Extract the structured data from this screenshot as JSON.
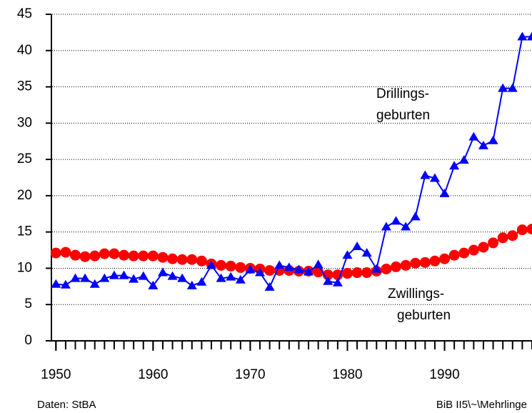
{
  "chart_data": {
    "type": "line",
    "x": [
      1950,
      1951,
      1952,
      1953,
      1954,
      1955,
      1956,
      1957,
      1958,
      1959,
      1960,
      1961,
      1962,
      1963,
      1964,
      1965,
      1966,
      1967,
      1968,
      1969,
      1970,
      1971,
      1972,
      1973,
      1974,
      1975,
      1976,
      1977,
      1978,
      1979,
      1980,
      1981,
      1982,
      1983,
      1984,
      1985,
      1986,
      1987,
      1988,
      1989,
      1990,
      1991,
      1992,
      1993,
      1994,
      1995,
      1996,
      1997,
      1998,
      1999
    ],
    "series": [
      {
        "color": "#ff0000",
        "marker": "circle",
        "values": [
          12.1,
          12.2,
          11.8,
          11.6,
          11.7,
          12.0,
          12.0,
          11.8,
          11.7,
          11.7,
          11.7,
          11.5,
          11.3,
          11.2,
          11.2,
          11.0,
          10.6,
          10.4,
          10.3,
          10.1,
          10.0,
          9.9,
          9.7,
          9.7,
          9.7,
          9.6,
          9.6,
          9.5,
          9.1,
          9.1,
          9.3,
          9.4,
          9.4,
          9.6,
          9.9,
          10.2,
          10.4,
          10.7,
          10.8,
          11.0,
          11.3,
          11.8,
          12.1,
          12.5,
          12.9,
          13.5,
          14.2,
          14.5,
          15.3,
          15.4
        ]
      },
      {
        "color": "#0000ff",
        "marker": "triangle",
        "values": [
          7.8,
          7.7,
          8.6,
          8.6,
          7.8,
          8.6,
          9.0,
          9.0,
          8.5,
          8.9,
          7.6,
          9.4,
          8.9,
          8.6,
          7.6,
          8.1,
          10.4,
          8.6,
          8.8,
          8.4,
          9.8,
          9.4,
          7.4,
          10.4,
          10.1,
          9.8,
          9.5,
          10.5,
          8.2,
          8.0,
          11.8,
          13.0,
          12.1,
          9.9,
          15.7,
          16.5,
          15.7,
          17.1,
          22.8,
          22.4,
          20.3,
          24.1,
          24.9,
          28.1,
          26.9,
          27.6,
          34.8,
          34.8,
          41.9,
          41.9
        ]
      }
    ],
    "annotations": [
      [
        "Drillings-",
        "geburten"
      ],
      [
        "Zwillings-",
        "geburten"
      ]
    ],
    "xlim": [
      1949.5,
      1999
    ],
    "xticks": [
      1950,
      1960,
      1970,
      1980,
      1990
    ],
    "ylim": [
      0,
      45
    ],
    "yticks": [
      0,
      5,
      10,
      15,
      20,
      25,
      30,
      35,
      40,
      45
    ],
    "grid": true,
    "source": "Daten: StBA",
    "credit": "BiB II5\\~\\Mehrlinge"
  }
}
